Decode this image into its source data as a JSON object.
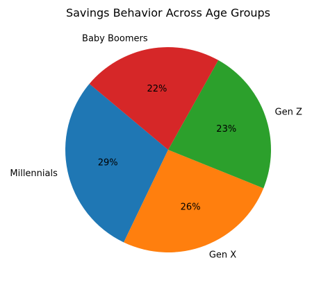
{
  "chart_data": {
    "type": "pie",
    "title": "Savings Behavior Across Age Groups",
    "categories": [
      "Millennials",
      "Gen X",
      "Gen Z",
      "Baby Boomers"
    ],
    "values": [
      29,
      26,
      23,
      22
    ],
    "percent_labels": [
      "29%",
      "26%",
      "23%",
      "22%"
    ],
    "colors": [
      "#1f77b4",
      "#ff7f0e",
      "#2ca02c",
      "#d62728"
    ],
    "start_angle_deg": 140,
    "direction": "counterclockwise",
    "legend": "none"
  }
}
